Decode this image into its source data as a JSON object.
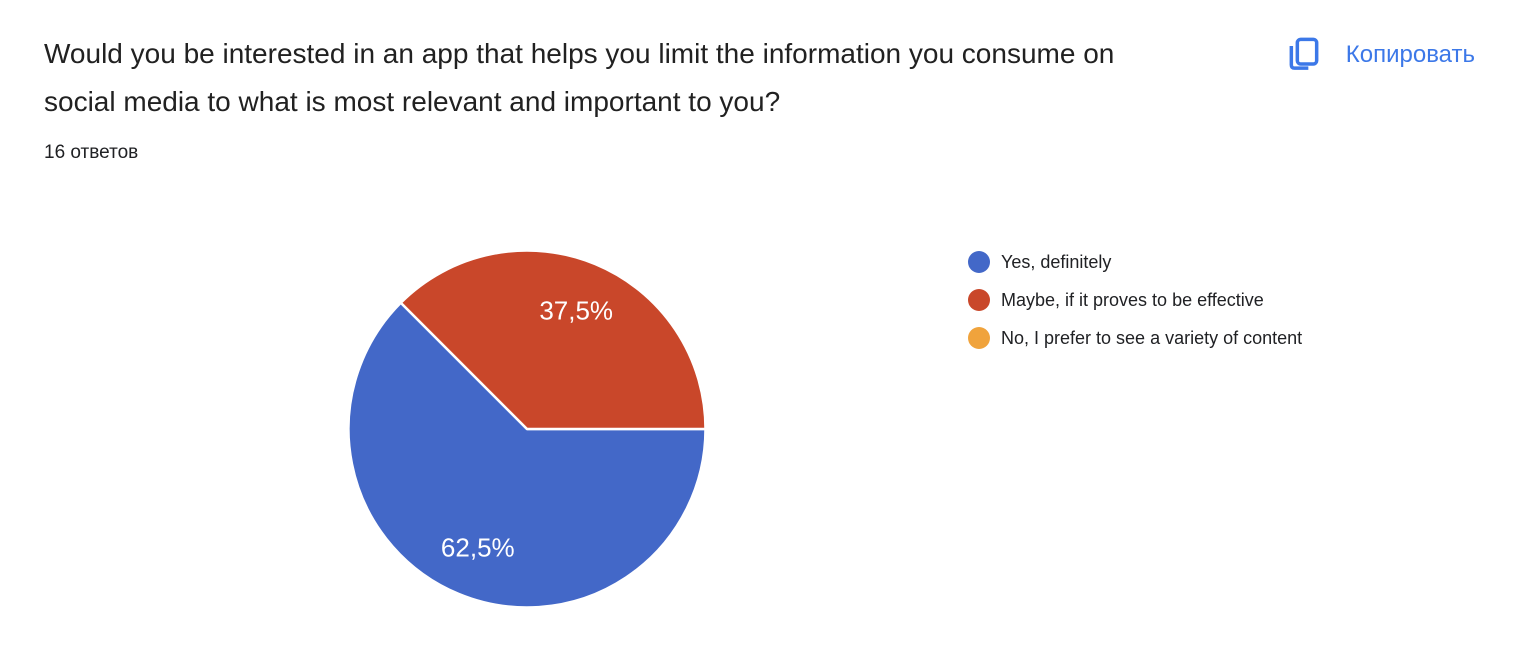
{
  "header": {
    "question": "Would you be interested in an app that helps you limit the information you consume on social media to what is most relevant and important to you?",
    "responses_label": "16 ответов",
    "copy_label": "Копировать"
  },
  "colors": {
    "copy_accent": "#3C78E8",
    "title_text": "#212121",
    "body_text": "#202124",
    "slice_label_text": "#ffffff"
  },
  "chart_data": {
    "type": "pie",
    "title": "Would you be interested in an app that helps you limit the information you consume on social media to what is most relevant and important to you?",
    "subtitle": "16 ответов",
    "legend_position": "right",
    "start_angle_deg": 0,
    "direction": "clockwise",
    "series": [
      {
        "label": "Yes, definitely",
        "percent": 62.5,
        "display": "62,5%",
        "color": "#4368C8"
      },
      {
        "label": "Maybe, if it proves to be effective",
        "percent": 37.5,
        "display": "37,5%",
        "color": "#C9472A"
      },
      {
        "label": "No, I prefer to see a variety of content",
        "percent": 0,
        "display": "",
        "color": "#F0A33C"
      }
    ]
  }
}
